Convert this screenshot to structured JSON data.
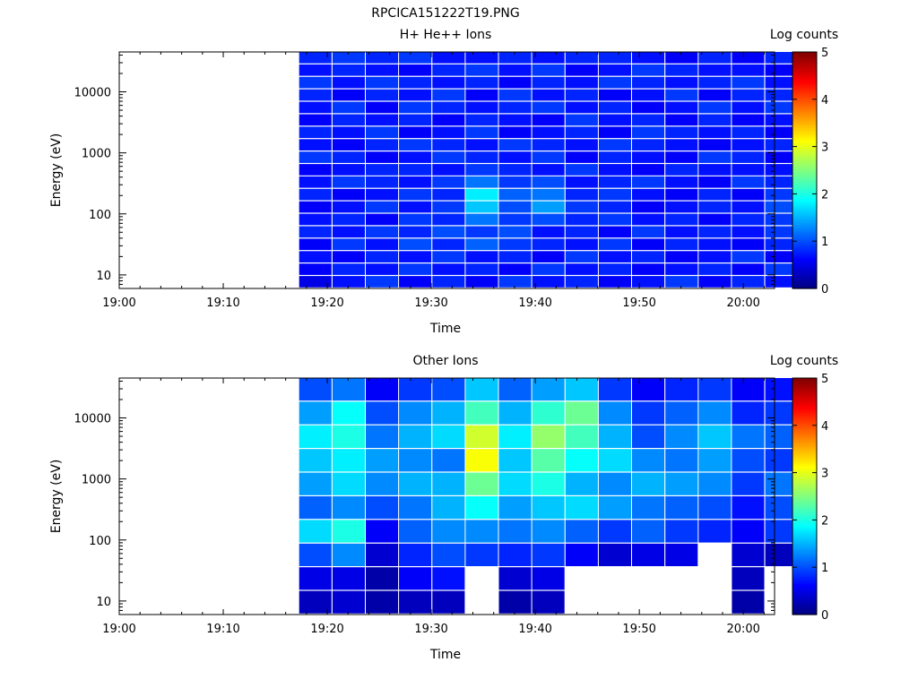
{
  "figure_title": "RPCICA151222T19.PNG",
  "chart_data": [
    {
      "type": "heatmap",
      "title": "H+ He++ Ions",
      "xlabel": "Time",
      "ylabel": "Energy (eV)",
      "colorbar_label": "Log counts",
      "x_ticks": [
        "19:00",
        "19:10",
        "19:20",
        "19:30",
        "19:40",
        "19:50",
        "20:00"
      ],
      "x_range_minutes": [
        0,
        63
      ],
      "y_ticks": [
        "10",
        "100",
        "1000",
        "10000"
      ],
      "y_range": [
        6,
        45000
      ],
      "y_scale": "log",
      "colorbar_ticks": [
        "0",
        "1",
        "2",
        "3",
        "4",
        "5"
      ],
      "colorbar_range": [
        0,
        5
      ],
      "data_time_columns_minutes": [
        17.3,
        20.5,
        23.7,
        26.9,
        30.1,
        33.3,
        36.5,
        39.7,
        42.9,
        46.1,
        49.3,
        52.5,
        55.7,
        58.9,
        62.1
      ],
      "levels": [
        [
          0.5,
          0.7,
          0.9,
          0.6,
          0.8,
          0.6,
          0.9,
          0.7,
          0.8,
          0.6,
          0.7,
          0.9,
          0.6,
          0.8,
          0.7
        ],
        [
          0.6,
          0.8,
          0.7,
          0.9,
          0.7,
          0.8,
          0.6,
          0.9,
          0.7,
          0.8,
          0.6,
          0.7,
          0.8,
          0.6,
          0.9
        ],
        [
          0.7,
          0.6,
          0.8,
          0.7,
          0.9,
          0.7,
          0.8,
          0.6,
          0.9,
          0.7,
          0.8,
          0.6,
          0.7,
          0.9,
          0.6
        ],
        [
          0.6,
          0.9,
          0.7,
          1.0,
          0.8,
          1.1,
          0.9,
          0.8,
          0.7,
          0.9,
          0.6,
          0.8,
          0.7,
          0.6,
          0.8
        ],
        [
          0.8,
          0.7,
          0.9,
          0.8,
          1.0,
          0.9,
          1.0,
          0.7,
          0.8,
          0.6,
          0.9,
          0.7,
          0.8,
          0.7,
          0.9
        ],
        [
          0.7,
          0.8,
          0.6,
          0.9,
          0.8,
          1.2,
          0.9,
          1.0,
          0.8,
          0.9,
          0.7,
          0.8,
          0.6,
          0.8,
          0.9
        ],
        [
          0.6,
          0.7,
          0.9,
          0.7,
          0.9,
          1.6,
          1.0,
          1.4,
          0.9,
          0.8,
          0.6,
          0.7,
          0.8,
          0.7,
          1.0
        ],
        [
          0.8,
          0.6,
          0.7,
          0.9,
          0.8,
          1.8,
          1.1,
          1.2,
          0.8,
          0.9,
          0.7,
          0.6,
          0.8,
          0.6,
          0.9
        ],
        [
          0.7,
          0.9,
          0.8,
          0.7,
          0.9,
          1.2,
          0.9,
          1.0,
          0.7,
          0.8,
          0.9,
          0.7,
          0.6,
          0.9,
          0.8
        ],
        [
          0.6,
          0.7,
          0.8,
          0.8,
          0.7,
          0.9,
          0.8,
          0.7,
          0.9,
          0.7,
          0.6,
          0.8,
          0.7,
          0.7,
          0.7
        ],
        [
          0.9,
          0.8,
          0.6,
          0.7,
          0.9,
          0.8,
          0.7,
          0.9,
          0.6,
          0.8,
          0.7,
          0.6,
          0.9,
          0.8,
          0.6
        ],
        [
          0.7,
          0.6,
          0.8,
          0.9,
          0.8,
          0.7,
          0.9,
          0.8,
          0.7,
          0.9,
          0.8,
          0.7,
          0.6,
          0.7,
          0.8
        ],
        [
          0.8,
          0.7,
          0.9,
          0.6,
          0.7,
          0.9,
          0.6,
          0.7,
          0.8,
          0.6,
          0.9,
          0.8,
          0.7,
          0.8,
          0.6
        ],
        [
          0.6,
          0.8,
          0.7,
          0.8,
          0.6,
          0.8,
          0.7,
          0.6,
          0.9,
          0.7,
          0.8,
          0.6,
          0.8,
          0.6,
          0.7
        ],
        [
          0.7,
          0.9,
          0.6,
          0.9,
          0.8,
          0.7,
          0.8,
          0.9,
          0.7,
          0.8,
          0.6,
          0.7,
          0.9,
          0.7,
          0.9
        ],
        [
          0.8,
          0.6,
          0.8,
          0.7,
          0.9,
          0.6,
          0.9,
          0.7,
          0.8,
          0.6,
          0.7,
          0.9,
          0.6,
          0.8,
          0.8
        ],
        [
          0.9,
          0.7,
          0.9,
          0.8,
          0.7,
          0.8,
          0.6,
          0.8,
          0.7,
          0.9,
          0.8,
          0.7,
          0.8,
          0.9,
          0.7
        ],
        [
          0.7,
          0.8,
          0.7,
          0.6,
          0.8,
          0.9,
          0.7,
          0.9,
          0.6,
          0.7,
          0.9,
          0.8,
          0.7,
          0.7,
          0.6
        ],
        [
          0.8,
          0.9,
          0.8,
          0.9,
          0.7,
          0.7,
          0.8,
          0.7,
          0.8,
          0.8,
          0.7,
          0.6,
          0.8,
          0.6,
          0.8
        ]
      ]
    },
    {
      "type": "heatmap",
      "title": "Other Ions",
      "xlabel": "Time",
      "ylabel": "Energy (eV)",
      "colorbar_label": "Log counts",
      "x_ticks": [
        "19:00",
        "19:10",
        "19:20",
        "19:30",
        "19:40",
        "19:50",
        "20:00"
      ],
      "x_range_minutes": [
        0,
        63
      ],
      "y_ticks": [
        "10",
        "100",
        "1000",
        "10000"
      ],
      "y_range": [
        6,
        45000
      ],
      "y_scale": "log",
      "colorbar_ticks": [
        "0",
        "1",
        "2",
        "3",
        "4",
        "5"
      ],
      "colorbar_range": [
        0,
        5
      ],
      "data_time_columns_minutes": [
        17.3,
        20.5,
        23.7,
        26.9,
        30.1,
        33.3,
        36.5,
        39.7,
        42.9,
        46.1,
        49.3,
        52.5,
        55.7,
        58.9,
        62.1
      ],
      "levels": [
        [
          0.3,
          0.4,
          0.2,
          0.3,
          0.3,
          null,
          0.2,
          0.3,
          null,
          null,
          null,
          null,
          null,
          0.2,
          null
        ],
        [
          0.5,
          0.5,
          0.2,
          0.6,
          0.7,
          null,
          0.4,
          0.5,
          null,
          null,
          null,
          null,
          null,
          0.3,
          null
        ],
        [
          1.0,
          1.3,
          0.4,
          0.8,
          1.0,
          0.9,
          0.8,
          0.9,
          0.6,
          0.4,
          0.5,
          0.5,
          null,
          0.4,
          0.3
        ],
        [
          1.7,
          2.0,
          0.6,
          1.1,
          1.3,
          1.3,
          1.2,
          1.3,
          1.1,
          0.9,
          1.1,
          0.9,
          0.8,
          0.6,
          0.9
        ],
        [
          1.1,
          1.3,
          1.0,
          1.2,
          1.5,
          1.9,
          1.4,
          1.6,
          1.7,
          1.4,
          1.2,
          1.1,
          1.0,
          0.7,
          1.0
        ],
        [
          1.4,
          1.7,
          1.3,
          1.5,
          1.5,
          2.4,
          1.7,
          2.0,
          1.5,
          1.3,
          1.5,
          1.4,
          1.3,
          0.9,
          1.2
        ],
        [
          1.6,
          1.8,
          1.4,
          1.3,
          1.2,
          3.1,
          1.6,
          2.3,
          1.9,
          1.7,
          1.3,
          1.2,
          1.4,
          1.0,
          0.9
        ],
        [
          1.8,
          2.0,
          1.2,
          1.5,
          1.7,
          2.9,
          1.8,
          2.6,
          2.2,
          1.5,
          1.0,
          1.3,
          1.6,
          1.2,
          1.1
        ],
        [
          1.4,
          1.9,
          1.0,
          1.3,
          1.5,
          2.2,
          1.5,
          2.1,
          2.4,
          1.3,
          0.9,
          1.1,
          1.3,
          0.8,
          0.9
        ],
        [
          1.0,
          1.2,
          0.6,
          0.9,
          1.0,
          1.6,
          1.1,
          1.4,
          1.6,
          0.9,
          0.6,
          0.8,
          0.9,
          0.6,
          0.7
        ]
      ]
    }
  ]
}
